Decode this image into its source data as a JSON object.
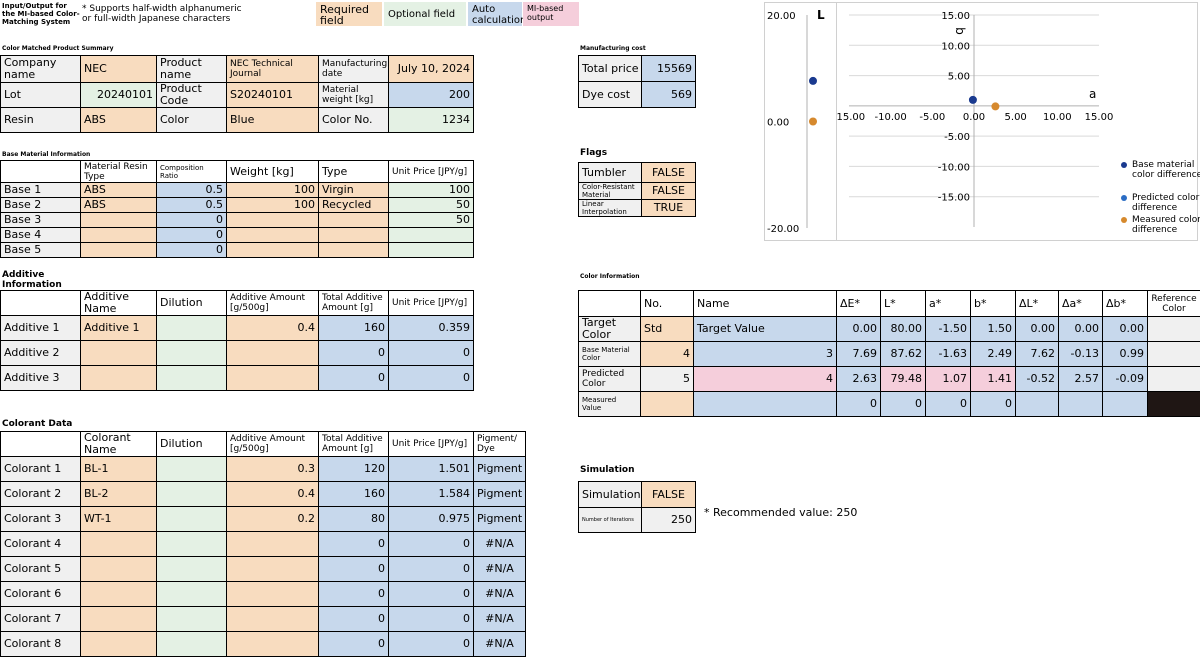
{
  "header": {
    "title": "Input/Output for the MI-based Color-Matching System",
    "note": "* Supports half-width alphanumeric or full-width Japanese characters"
  },
  "legend": {
    "required": "Required field",
    "optional": "Optional field",
    "auto": "Auto calculation",
    "mi": "MI-based output",
    "colors": {
      "required": "#f8dcbf",
      "optional": "#e4f1e4",
      "auto": "#c7d8ec",
      "mi": "#f5cedb"
    }
  },
  "summary": {
    "section": "Color Matched Product Summary",
    "company_label": "Company name",
    "company_value": "NEC",
    "product_label": "Product name",
    "product_value": "NEC Technical Journal",
    "mfg_date_label": "Manufacturing date",
    "mfg_date_value": "July 10, 2024",
    "lot_label": "Lot",
    "lot_value": "20240101",
    "code_label": "Product Code",
    "code_value": "S20240101",
    "weight_label": "Material weight [kg]",
    "weight_value": "200",
    "resin_label": "Resin",
    "resin_value": "ABS",
    "color_label": "Color",
    "color_value": "Blue",
    "color_no_label": "Color No.",
    "color_no_value": "1234"
  },
  "base": {
    "section": "Base Material Information",
    "headers": [
      "",
      "Material Resin Type",
      "Composition Ratio",
      "Weight [kg]",
      "Type",
      "Unit Price [JPY/g]"
    ],
    "rows": [
      {
        "label": "Base 1",
        "resin": "ABS",
        "ratio": "0.5",
        "weight": "100",
        "type": "Virgin",
        "price": "100"
      },
      {
        "label": "Base 2",
        "resin": "ABS",
        "ratio": "0.5",
        "weight": "100",
        "type": "Recycled",
        "price": "50"
      },
      {
        "label": "Base 3",
        "resin": "",
        "ratio": "0",
        "weight": "",
        "type": "",
        "price": "50"
      },
      {
        "label": "Base 4",
        "resin": "",
        "ratio": "0",
        "weight": "",
        "type": "",
        "price": ""
      },
      {
        "label": "Base 5",
        "resin": "",
        "ratio": "0",
        "weight": "",
        "type": "",
        "price": ""
      }
    ]
  },
  "additive": {
    "section": "Additive Information",
    "headers": [
      "",
      "Additive Name",
      "Dilution",
      "Additive Amount [g/500g]",
      "Total Additive Amount [g]",
      "Unit Price [JPY/g]"
    ],
    "rows": [
      {
        "label": "Additive 1",
        "name": "Additive 1",
        "dilution": "",
        "amount": "0.4",
        "total": "160",
        "price": "0.359"
      },
      {
        "label": "Additive 2",
        "name": "",
        "dilution": "",
        "amount": "",
        "total": "0",
        "price": "0"
      },
      {
        "label": "Additive 3",
        "name": "",
        "dilution": "",
        "amount": "",
        "total": "0",
        "price": "0"
      }
    ]
  },
  "colorant": {
    "section": "Colorant Data",
    "headers": [
      "",
      "Colorant Name",
      "Dilution",
      "Additive Amount [g/500g]",
      "Total Additive Amount [g]",
      "Unit Price [JPY/g]",
      "Pigment/Dye"
    ],
    "rows": [
      {
        "label": "Colorant 1",
        "name": "BL-1",
        "dilution": "",
        "amount": "0.3",
        "total": "120",
        "price": "1.501",
        "type": "Pigment"
      },
      {
        "label": "Colorant 2",
        "name": "BL-2",
        "dilution": "",
        "amount": "0.4",
        "total": "160",
        "price": "1.584",
        "type": "Pigment"
      },
      {
        "label": "Colorant 3",
        "name": "WT-1",
        "dilution": "",
        "amount": "0.2",
        "total": "80",
        "price": "0.975",
        "type": "Pigment"
      },
      {
        "label": "Colorant 4",
        "name": "",
        "dilution": "",
        "amount": "",
        "total": "0",
        "price": "0",
        "type": "#N/A"
      },
      {
        "label": "Colorant 5",
        "name": "",
        "dilution": "",
        "amount": "",
        "total": "0",
        "price": "0",
        "type": "#N/A"
      },
      {
        "label": "Colorant 6",
        "name": "",
        "dilution": "",
        "amount": "",
        "total": "0",
        "price": "0",
        "type": "#N/A"
      },
      {
        "label": "Colorant 7",
        "name": "",
        "dilution": "",
        "amount": "",
        "total": "0",
        "price": "0",
        "type": "#N/A"
      },
      {
        "label": "Colorant 8",
        "name": "",
        "dilution": "",
        "amount": "",
        "total": "0",
        "price": "0",
        "type": "#N/A"
      }
    ]
  },
  "cost": {
    "section": "Manufacturing cost",
    "total_label": "Total price",
    "total_value": "15569",
    "dye_label": "Dye cost",
    "dye_value": "569"
  },
  "flags": {
    "section": "Flags",
    "tumbler_label": "Tumbler",
    "tumbler_value": "FALSE",
    "resistant_label": "Color-Resistant Material",
    "resistant_value": "FALSE",
    "interp_label": "Linear Interpolation",
    "interp_value": "TRUE"
  },
  "color_info": {
    "section": "Color Information",
    "headers": [
      "",
      "No.",
      "Name",
      "ΔE*",
      "L*",
      "a*",
      "b*",
      "ΔL*",
      "Δa*",
      "Δb*",
      "Reference Color"
    ],
    "rows": [
      {
        "label": "Target Color",
        "no": "Std",
        "name": "Target Value",
        "dE": "0.00",
        "L": "80.00",
        "a": "-1.50",
        "b": "1.50",
        "dL": "0.00",
        "da": "0.00",
        "db": "0.00"
      },
      {
        "label": "Base Material Color",
        "no": "4",
        "name": "3",
        "dE": "7.69",
        "L": "87.62",
        "a": "-1.63",
        "b": "2.49",
        "dL": "7.62",
        "da": "-0.13",
        "db": "0.99"
      },
      {
        "label": "Predicted Color",
        "no": "5",
        "name": "4",
        "dE": "2.63",
        "L": "79.48",
        "a": "1.07",
        "b": "1.41",
        "dL": "-0.52",
        "da": "2.57",
        "db": "-0.09"
      },
      {
        "label": "Measured Value",
        "no": "",
        "name": "",
        "dE": "0",
        "L": "0",
        "a": "0",
        "b": "0",
        "dL": "",
        "da": "",
        "db": ""
      }
    ]
  },
  "simulation": {
    "section": "Simulation",
    "sim_label": "Simulation",
    "sim_value": "FALSE",
    "iter_label": "Number of Iterations",
    "iter_value": "250",
    "recommend_label": "* Recommended value:",
    "recommend_value": "250"
  },
  "chart_data": [
    {
      "type": "scatter",
      "axis_label": "L",
      "ylim": [
        -20,
        20
      ],
      "y_ticks": [
        "20.00",
        "0.00",
        "-20.00"
      ],
      "series": [
        {
          "color": "#1a3a8f",
          "points": [
            {
              "x": 0,
              "y": 7.62
            }
          ]
        },
        {
          "color": "#d6892d",
          "points": [
            {
              "x": 0,
              "y": 0
            }
          ]
        }
      ]
    },
    {
      "type": "scatter",
      "xlabel": "a",
      "ylabel": "b",
      "xlim": [
        -15,
        15
      ],
      "ylim": [
        -20,
        15
      ],
      "x_ticks": [
        "-15.00",
        "-10.00",
        "-5.00",
        "0.00",
        "5.00",
        "10.00",
        "15.00"
      ],
      "y_ticks": [
        "15.00",
        "10.00",
        "5.00",
        "-5.00",
        "-10.00",
        "-15.00"
      ],
      "legend_position": "right",
      "series": [
        {
          "name": "Base material color difference",
          "color": "#1a3a8f",
          "points": [
            {
              "x": -0.13,
              "y": 0.99
            }
          ]
        },
        {
          "name": "Predicted color difference",
          "color": "#2b6cc4",
          "points": []
        },
        {
          "name": "Measured color difference",
          "color": "#d6892d",
          "points": [
            {
              "x": 2.57,
              "y": -0.09
            }
          ]
        }
      ]
    }
  ]
}
